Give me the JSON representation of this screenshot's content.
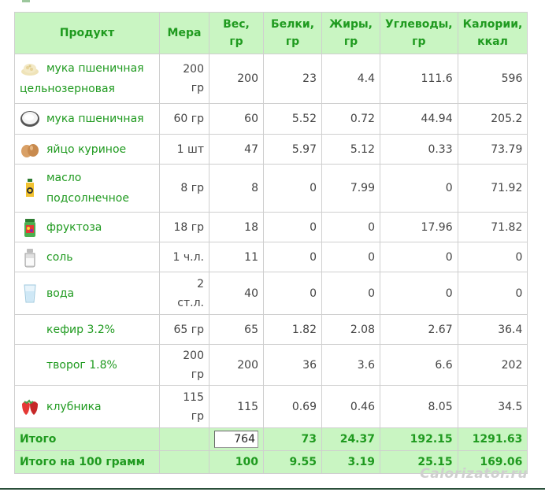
{
  "header": {
    "product": "Продукт",
    "measure": "Мера",
    "weight": "Вес,\nгр",
    "protein": "Белки,\nгр",
    "fat": "Жиры,\nгр",
    "carbs": "Углеводы,\nгр",
    "calories": "Калории,\nккал"
  },
  "rows": [
    {
      "icon": "flour-icon",
      "name": "мука пшеничная цельнозерновая",
      "measure": "200\nгр",
      "weight": "200",
      "protein": "23",
      "fat": "4.4",
      "carbs": "111.6",
      "calories": "596"
    },
    {
      "icon": "flour-bowl-icon",
      "name": "мука пшеничная",
      "measure": "60 гр",
      "weight": "60",
      "protein": "5.52",
      "fat": "0.72",
      "carbs": "44.94",
      "calories": "205.2"
    },
    {
      "icon": "egg-icon",
      "name": "яйцо куриное",
      "measure": "1 шт",
      "weight": "47",
      "protein": "5.97",
      "fat": "5.12",
      "carbs": "0.33",
      "calories": "73.79"
    },
    {
      "icon": "oil-bottle-icon",
      "name": "масло подсолнечное",
      "measure": "8 гр",
      "weight": "8",
      "protein": "0",
      "fat": "7.99",
      "carbs": "0",
      "calories": "71.92"
    },
    {
      "icon": "fructose-jar-icon",
      "name": "фруктоза",
      "measure": "18 гр",
      "weight": "18",
      "protein": "0",
      "fat": "0",
      "carbs": "17.96",
      "calories": "71.82"
    },
    {
      "icon": "salt-shaker-icon",
      "name": "соль",
      "measure": "1 ч.л.",
      "weight": "11",
      "protein": "0",
      "fat": "0",
      "carbs": "0",
      "calories": "0"
    },
    {
      "icon": "water-glass-icon",
      "name": "вода",
      "measure": "2\nст.л.",
      "weight": "40",
      "protein": "0",
      "fat": "0",
      "carbs": "0",
      "calories": "0"
    },
    {
      "icon": "",
      "name": "кефир 3.2%",
      "measure": "65 гр",
      "weight": "65",
      "protein": "1.82",
      "fat": "2.08",
      "carbs": "2.67",
      "calories": "36.4"
    },
    {
      "icon": "",
      "name": "творог 1.8%",
      "measure": "200\nгр",
      "weight": "200",
      "protein": "36",
      "fat": "3.6",
      "carbs": "6.6",
      "calories": "202"
    },
    {
      "icon": "strawberry-icon",
      "name": "клубника",
      "measure": "115\nгр",
      "weight": "115",
      "protein": "0.69",
      "fat": "0.46",
      "carbs": "8.05",
      "calories": "34.5"
    }
  ],
  "totals": {
    "label": "Итого",
    "weight_input_value": "764",
    "protein": "73",
    "fat": "24.37",
    "carbs": "192.15",
    "calories": "1291.63"
  },
  "per100": {
    "label": "Итого на 100 грамм",
    "weight": "100",
    "protein": "9.55",
    "fat": "3.19",
    "carbs": "25.15",
    "calories": "169.06"
  },
  "watermark": "Calorizator.ru",
  "colors": {
    "accent_green": "#1f9a1f",
    "header_bg": "#c9f5c2",
    "border": "#cfcfcf"
  }
}
